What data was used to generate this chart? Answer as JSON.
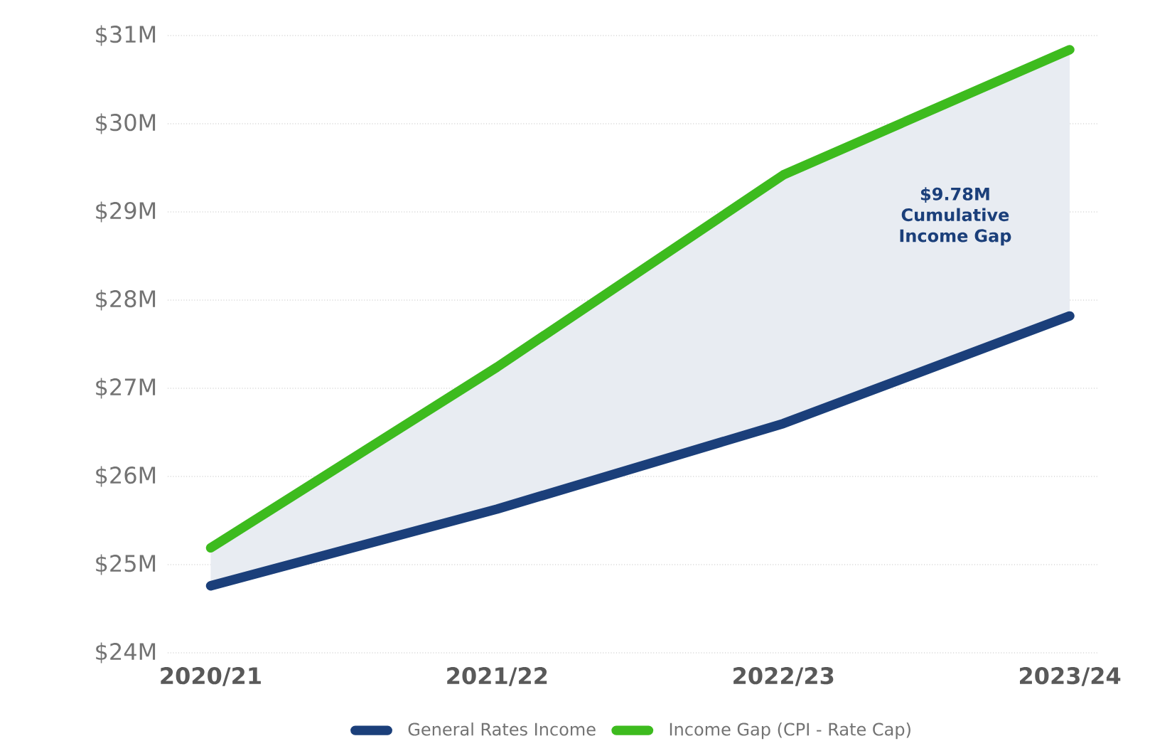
{
  "chart_data": {
    "type": "line",
    "categories": [
      "2020/21",
      "2021/22",
      "2022/23",
      "2023/24"
    ],
    "series": [
      {
        "name": "General Rates Income",
        "color": "#1b3f7a",
        "values": [
          24.76,
          25.63,
          26.6,
          27.82
        ],
        "lower": [
          24.76,
          25.63,
          26.6,
          27.82
        ],
        "upper": [
          25.19,
          27.24,
          29.42,
          30.84
        ]
      },
      {
        "name": "Income Gap (CPI - Rate Cap)",
        "color": "#3dbb1e",
        "values": [
          25.19,
          27.24,
          29.42,
          30.84
        ]
      }
    ],
    "ylim": [
      24,
      31
    ],
    "yticks": [
      {
        "value": 24,
        "label": "$24M"
      },
      {
        "value": 25,
        "label": "$25M"
      },
      {
        "value": 26,
        "label": "$26M"
      },
      {
        "value": 27,
        "label": "$27M"
      },
      {
        "value": 28,
        "label": "$28M"
      },
      {
        "value": 29,
        "label": "$29M"
      },
      {
        "value": 30,
        "label": "$30M"
      },
      {
        "value": 31,
        "label": "$31M"
      }
    ],
    "grid": "y",
    "legend": "bottom",
    "annotations": [
      "$9.78M Cumulative Income Gap"
    ]
  }
}
